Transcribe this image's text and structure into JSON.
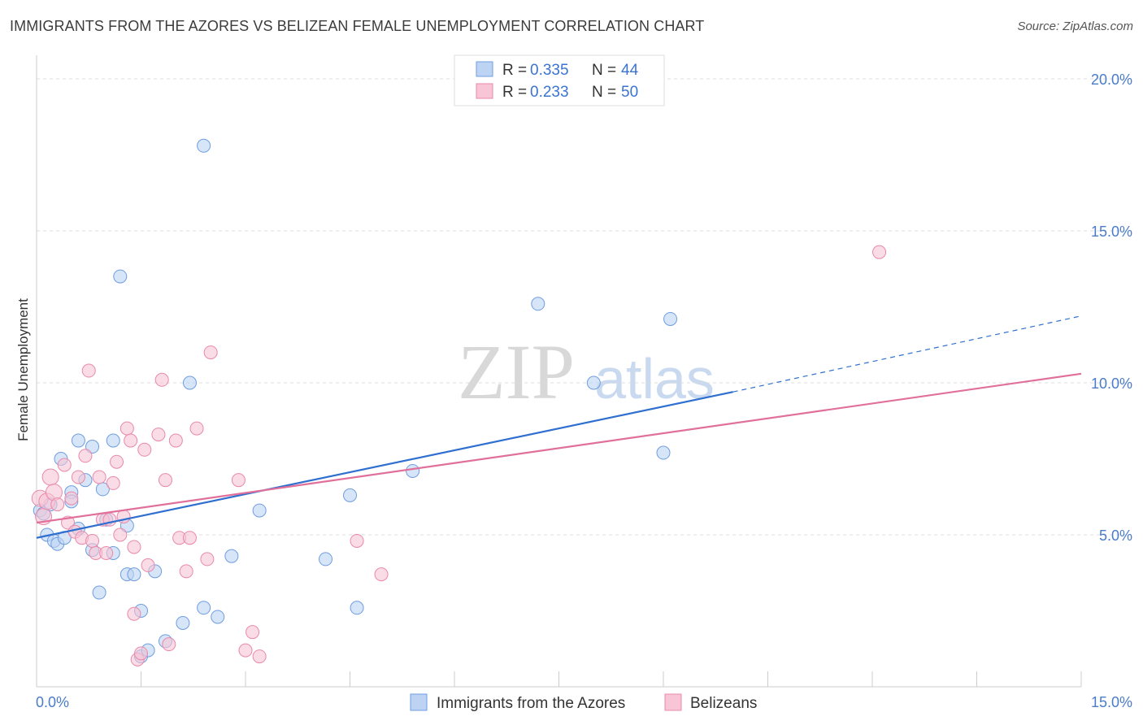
{
  "title": "IMMIGRANTS FROM THE AZORES VS BELIZEAN FEMALE UNEMPLOYMENT CORRELATION CHART",
  "source": "Source: ZipAtlas.com",
  "watermark": {
    "zip": "ZIP",
    "atlas": "atlas"
  },
  "legend_top": [
    {
      "r_label": "R = ",
      "r_value": "0.335",
      "n_label": "N = ",
      "n_value": "44"
    },
    {
      "r_label": "R = ",
      "r_value": "0.233",
      "n_label": "N = ",
      "n_value": "50"
    }
  ],
  "chart_data": {
    "type": "scatter",
    "title": "IMMIGRANTS FROM THE AZORES VS BELIZEAN FEMALE UNEMPLOYMENT CORRELATION CHART",
    "ylabel": "Female Unemployment",
    "xlabel": "",
    "xlim": [
      0,
      15
    ],
    "ylim": [
      0,
      20
    ],
    "x_tick_labels": [
      "0.0%",
      "15.0%"
    ],
    "y_tick_labels": [
      "5.0%",
      "10.0%",
      "15.0%",
      "20.0%"
    ],
    "y_ticks": [
      5,
      10,
      15,
      20
    ],
    "x_ticks": [
      0,
      1.5,
      3,
      4.5,
      6,
      7.5,
      9,
      10.5,
      12,
      13.5,
      15
    ],
    "grid": true,
    "legend_position": "top-center",
    "series": [
      {
        "name": "Immigrants from the Azores",
        "color": "#6f9de0",
        "fill": "#bcd3f3",
        "R": 0.335,
        "N": 44,
        "trend": {
          "x": [
            0,
            10
          ],
          "y": [
            4.9,
            9.7
          ],
          "dashed_to": [
            15,
            12.2
          ]
        },
        "points": [
          [
            0.05,
            5.8
          ],
          [
            0.1,
            5.7
          ],
          [
            0.15,
            5.0
          ],
          [
            0.2,
            6.0
          ],
          [
            0.25,
            4.8
          ],
          [
            0.3,
            4.7
          ],
          [
            0.35,
            7.5
          ],
          [
            0.4,
            4.9
          ],
          [
            0.5,
            6.4
          ],
          [
            0.5,
            6.1
          ],
          [
            0.6,
            8.1
          ],
          [
            0.6,
            5.2
          ],
          [
            0.7,
            6.8
          ],
          [
            0.8,
            7.9
          ],
          [
            0.8,
            4.5
          ],
          [
            0.9,
            3.1
          ],
          [
            0.95,
            6.5
          ],
          [
            1.0,
            5.5
          ],
          [
            1.1,
            8.1
          ],
          [
            1.1,
            4.4
          ],
          [
            1.2,
            13.5
          ],
          [
            1.3,
            5.3
          ],
          [
            1.3,
            3.7
          ],
          [
            1.4,
            3.7
          ],
          [
            1.5,
            1.0
          ],
          [
            1.5,
            2.5
          ],
          [
            1.6,
            1.2
          ],
          [
            1.7,
            3.8
          ],
          [
            1.85,
            1.5
          ],
          [
            2.1,
            2.1
          ],
          [
            2.2,
            10.0
          ],
          [
            2.4,
            17.8
          ],
          [
            2.4,
            2.6
          ],
          [
            2.6,
            2.3
          ],
          [
            2.8,
            4.3
          ],
          [
            3.2,
            5.8
          ],
          [
            4.15,
            4.2
          ],
          [
            4.5,
            6.3
          ],
          [
            4.6,
            2.6
          ],
          [
            5.4,
            7.1
          ],
          [
            7.2,
            12.6
          ],
          [
            8.0,
            10.0
          ],
          [
            9.0,
            7.7
          ],
          [
            9.1,
            12.1
          ]
        ]
      },
      {
        "name": "Belizeans",
        "color": "#e989a9",
        "fill": "#f7c5d5",
        "R": 0.233,
        "N": 50,
        "trend": {
          "x": [
            0,
            15
          ],
          "y": [
            5.4,
            10.3
          ]
        },
        "points": [
          [
            0.05,
            6.2
          ],
          [
            0.1,
            5.6
          ],
          [
            0.15,
            6.1
          ],
          [
            0.2,
            6.9
          ],
          [
            0.25,
            6.4
          ],
          [
            0.3,
            6.0
          ],
          [
            0.4,
            7.3
          ],
          [
            0.45,
            5.4
          ],
          [
            0.5,
            6.2
          ],
          [
            0.55,
            5.1
          ],
          [
            0.6,
            6.9
          ],
          [
            0.65,
            4.9
          ],
          [
            0.7,
            7.6
          ],
          [
            0.75,
            10.4
          ],
          [
            0.8,
            4.8
          ],
          [
            0.85,
            4.4
          ],
          [
            0.9,
            6.9
          ],
          [
            0.95,
            5.5
          ],
          [
            1.0,
            4.4
          ],
          [
            1.05,
            5.5
          ],
          [
            1.1,
            6.7
          ],
          [
            1.15,
            7.4
          ],
          [
            1.2,
            5.0
          ],
          [
            1.25,
            5.6
          ],
          [
            1.3,
            8.5
          ],
          [
            1.35,
            8.1
          ],
          [
            1.4,
            4.6
          ],
          [
            1.4,
            2.4
          ],
          [
            1.45,
            0.9
          ],
          [
            1.5,
            1.1
          ],
          [
            1.55,
            7.8
          ],
          [
            1.6,
            4.0
          ],
          [
            1.75,
            8.3
          ],
          [
            1.8,
            10.1
          ],
          [
            1.85,
            6.8
          ],
          [
            1.9,
            1.4
          ],
          [
            2.0,
            8.1
          ],
          [
            2.05,
            4.9
          ],
          [
            2.15,
            3.8
          ],
          [
            2.2,
            4.9
          ],
          [
            2.3,
            8.5
          ],
          [
            2.45,
            4.2
          ],
          [
            2.5,
            11.0
          ],
          [
            2.9,
            6.8
          ],
          [
            3.0,
            1.2
          ],
          [
            3.1,
            1.8
          ],
          [
            3.2,
            1.0
          ],
          [
            4.6,
            4.8
          ],
          [
            4.95,
            3.7
          ],
          [
            12.1,
            14.3
          ]
        ]
      }
    ]
  },
  "bottom_legend": [
    "Immigrants from the Azores",
    "Belizeans"
  ]
}
